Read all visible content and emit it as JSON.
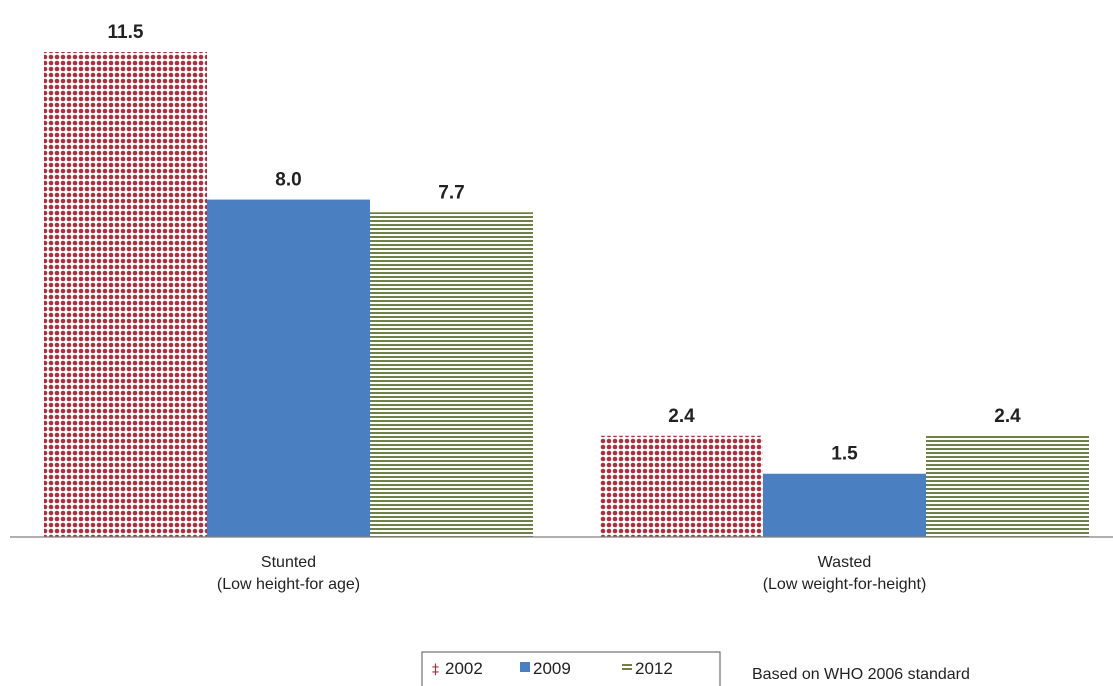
{
  "chart_data": {
    "type": "bar",
    "categories": [
      [
        "Stunted",
        "(Low height-for age)"
      ],
      [
        "Wasted",
        "(Low weight-for-height)"
      ]
    ],
    "series": [
      {
        "name": "2002",
        "values": [
          11.5,
          2.4
        ],
        "color": "#a8323e",
        "pattern": "dots"
      },
      {
        "name": "2009",
        "values": [
          8.0,
          1.5
        ],
        "color": "#4a7fc1",
        "pattern": "solid"
      },
      {
        "name": "2012",
        "values": [
          7.7,
          2.4
        ],
        "color": "#6f7f4a",
        "pattern": "horizontal-lines"
      }
    ],
    "value_labels": [
      [
        "11.5",
        "2.4"
      ],
      [
        "8.0",
        "1.5"
      ],
      [
        "7.7",
        "2.4"
      ]
    ],
    "ylim": [
      0,
      11.5
    ],
    "grid": false,
    "legend": "bottom-center",
    "annotation": "Based on WHO 2006 standard"
  }
}
